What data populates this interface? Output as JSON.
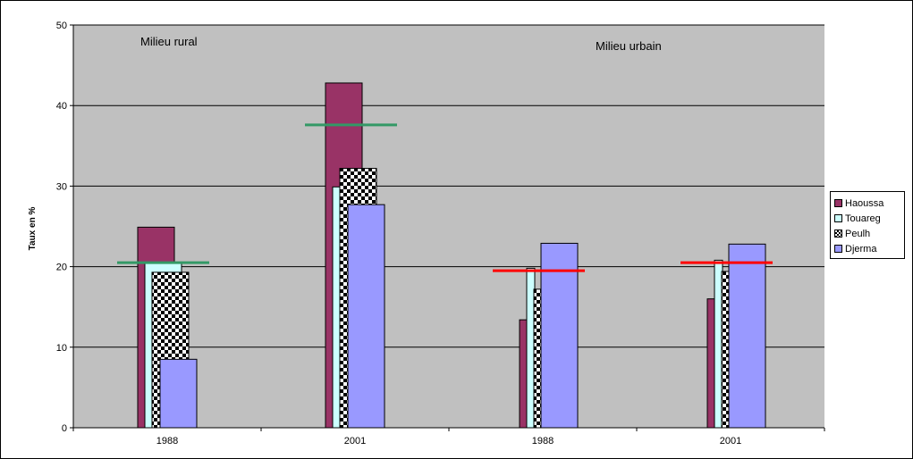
{
  "chart_data": {
    "type": "bar",
    "categories": [
      "1988",
      "2001",
      "1988",
      "2001"
    ],
    "ylabel": "Taux en %",
    "ylim": [
      0,
      50
    ],
    "yticks": [
      0,
      10,
      20,
      30,
      40,
      50
    ],
    "grid": true,
    "legend_position": "right",
    "series": [
      {
        "name": "Haoussa",
        "values": [
          24.9,
          42.8,
          13.4,
          16.0
        ],
        "color": "#993366"
      },
      {
        "name": "Touareg",
        "values": [
          20.5,
          29.9,
          19.8,
          20.8
        ],
        "color": "#ccffff"
      },
      {
        "name": "Peulh",
        "values": [
          19.3,
          32.2,
          17.2,
          19.4
        ],
        "color": "checkered"
      },
      {
        "name": "Djerma",
        "values": [
          8.5,
          27.7,
          22.9,
          22.8
        ],
        "color": "#9999ff"
      }
    ],
    "reference_lines": [
      {
        "category_index": 0,
        "value": 20.5,
        "color": "#339966"
      },
      {
        "category_index": 1,
        "value": 37.6,
        "color": "#339966"
      },
      {
        "category_index": 2,
        "value": 19.5,
        "color": "#ff0000"
      },
      {
        "category_index": 3,
        "value": 20.5,
        "color": "#ff0000"
      }
    ],
    "annotations": [
      "Milieu rural",
      "Milieu urbain"
    ],
    "plot_background": "#c0c0c0"
  }
}
